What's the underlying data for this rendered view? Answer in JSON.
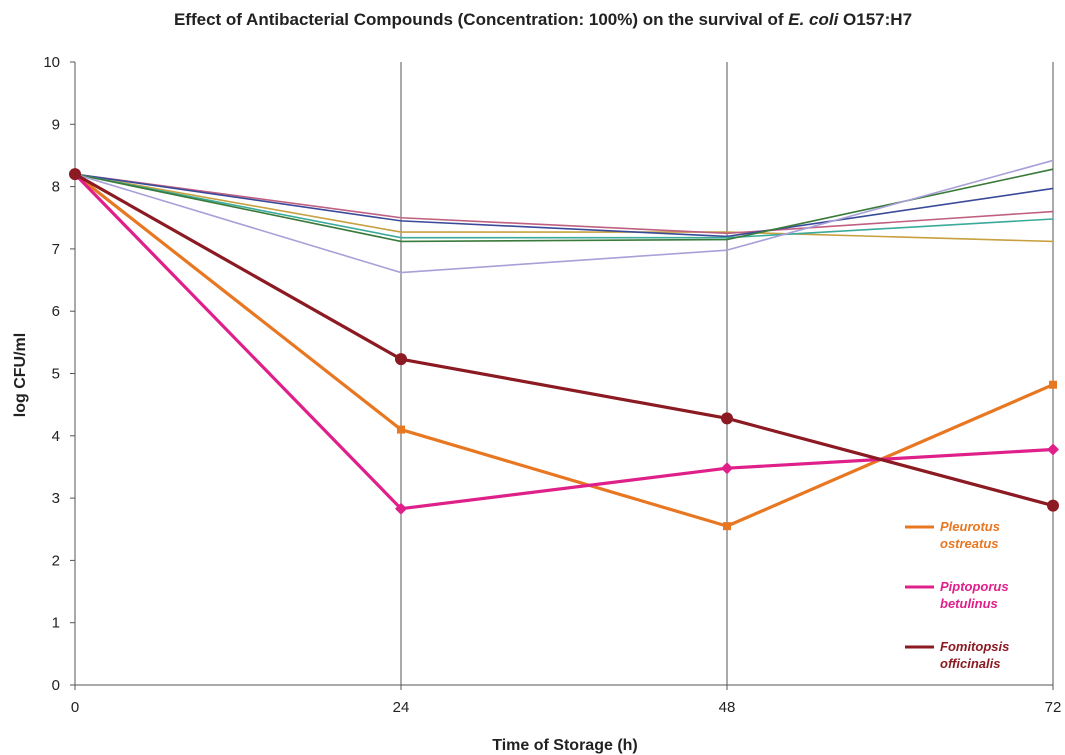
{
  "chart_data": {
    "type": "line",
    "title_parts": {
      "prefix": "Effect of Antibacterial Compounds (Concentration: 100%) on the survival of ",
      "italic": "E. coli",
      "suffix": " O157:H7"
    },
    "xlabel": "Time of Storage (h)",
    "ylabel": "log CFU/ml",
    "x": [
      0,
      24,
      48,
      72
    ],
    "x_tick_labels": [
      "0",
      "24",
      "48",
      "72"
    ],
    "y_tick_labels": [
      "0",
      "1",
      "2",
      "3",
      "4",
      "5",
      "6",
      "7",
      "8",
      "9",
      "10"
    ],
    "xlim": [
      0,
      72
    ],
    "ylim": [
      0,
      10
    ],
    "grid": "vertical lines at x ticks",
    "legend_position": "bottom-right",
    "series": [
      {
        "values": [
          8.2,
          7.27,
          7.27,
          7.12
        ],
        "color": "#c8a040",
        "thin": true
      },
      {
        "values": [
          8.2,
          7.5,
          7.25,
          7.6
        ],
        "color": "#c06080",
        "thin": true
      },
      {
        "values": [
          8.2,
          7.45,
          7.2,
          7.97
        ],
        "color": "#3a4a9a",
        "thin": true
      },
      {
        "values": [
          8.2,
          7.18,
          7.18,
          7.48
        ],
        "color": "#3aaa9a",
        "thin": true
      },
      {
        "values": [
          8.2,
          7.12,
          7.15,
          8.28
        ],
        "color": "#3a7a3a",
        "thin": true
      },
      {
        "values": [
          8.2,
          6.62,
          6.98,
          8.42
        ],
        "color": "#a8a0d8",
        "thin": true
      },
      {
        "name": "Pleurotus ostreatus",
        "values": [
          8.2,
          4.1,
          2.55,
          4.82
        ],
        "color": "#e87722",
        "thin": false,
        "marker": "square"
      },
      {
        "name": "Piptoporus betulinus",
        "values": [
          8.2,
          2.83,
          3.48,
          3.78
        ],
        "color": "#e0208a",
        "thin": false,
        "marker": "diamond"
      },
      {
        "name": "Fomitopsis officinalis",
        "values": [
          8.2,
          5.23,
          4.28,
          2.88
        ],
        "color": "#8b1a22",
        "thin": false,
        "marker": "circle"
      }
    ],
    "legend": [
      {
        "line1": "Pleurotus",
        "line2": "ostreatus",
        "color": "#e87722"
      },
      {
        "line1": "Piptoporus",
        "line2": "betulinus",
        "color": "#e0208a"
      },
      {
        "line1": "Fomitopsis",
        "line2": "officinalis",
        "color": "#8b1a22"
      }
    ]
  }
}
